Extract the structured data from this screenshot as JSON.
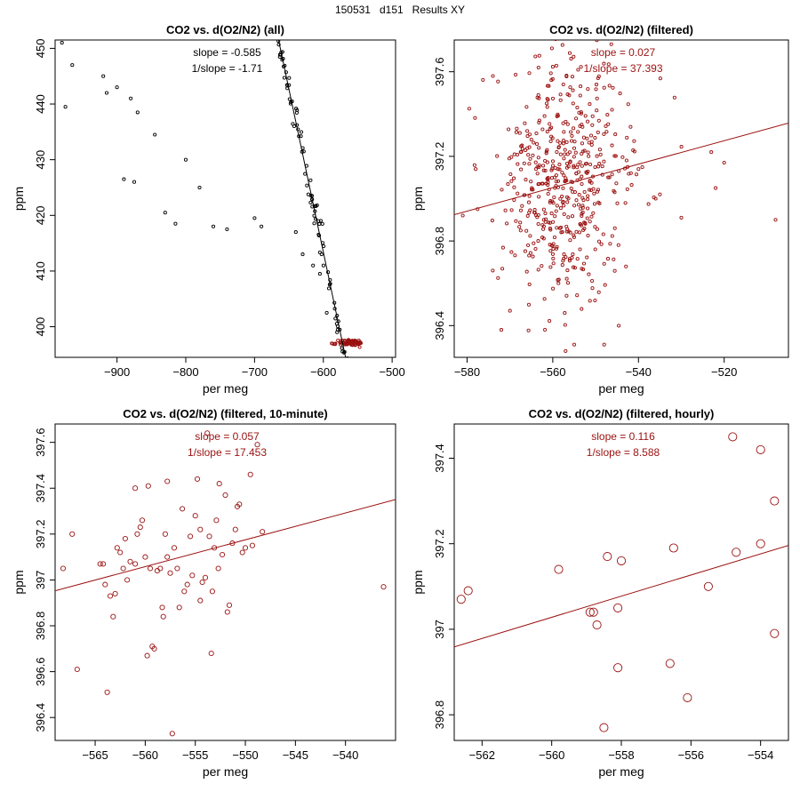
{
  "page": {
    "title": "150531   d151   Results XY"
  },
  "colors": {
    "black": "#000000",
    "red": "#9b1111",
    "frame": "#000000"
  },
  "chart_data": [
    {
      "id": "all",
      "type": "scatter",
      "title": "CO2 vs. d(O2/N2) (all)",
      "xlabel": "per meg",
      "ylabel": "ppm",
      "xlim": [
        -990,
        -495
      ],
      "ylim": [
        394.5,
        451.5
      ],
      "xticks": [
        -900,
        -800,
        -700,
        -600,
        -500
      ],
      "yticks": [
        400,
        410,
        420,
        430,
        440,
        450
      ],
      "annotations": [
        "slope = -0.585",
        "1/slope = -1.71"
      ],
      "fit": {
        "slope": -0.585,
        "intercept": 62.4
      },
      "color": "black",
      "marker_r": 1.6,
      "gen": {
        "n": 330,
        "xmin": -975,
        "xmax": -520,
        "noise": 1.4,
        "seed": 7,
        "skew": 1.6
      },
      "cluster": {
        "n": 90,
        "x": -560,
        "y": 397.1,
        "sx": 9,
        "sy": 0.25,
        "color": "red",
        "seed": 21
      },
      "points": [
        [
          -980,
          451
        ],
        [
          -975,
          439.5
        ],
        [
          -965,
          447
        ],
        [
          -920,
          445
        ],
        [
          -915,
          442
        ],
        [
          -900,
          443
        ],
        [
          -880,
          441
        ],
        [
          -870,
          438.5
        ],
        [
          -890,
          426.5
        ],
        [
          -875,
          426
        ],
        [
          -845,
          434.5
        ],
        [
          -830,
          420.5
        ],
        [
          -815,
          418.5
        ],
        [
          -800,
          430
        ],
        [
          -780,
          425
        ],
        [
          -760,
          418
        ],
        [
          -740,
          417.5
        ],
        [
          -700,
          419.5
        ],
        [
          -690,
          418
        ],
        [
          -640,
          417
        ],
        [
          -630,
          413
        ],
        [
          -615,
          411
        ],
        [
          -605,
          409.5
        ],
        [
          -595,
          402.5
        ],
        [
          -580,
          399
        ]
      ]
    },
    {
      "id": "filtered",
      "type": "scatter",
      "title": "CO2 vs. d(O2/N2) (filtered)",
      "xlabel": "per meg",
      "ylabel": "ppm",
      "xlim": [
        -583,
        -505
      ],
      "ylim": [
        396.25,
        397.75
      ],
      "xticks": [
        -580,
        -560,
        -540,
        -520
      ],
      "yticks": [
        396.4,
        396.8,
        397.2,
        397.6
      ],
      "annotations": [
        "slope = 0.027",
        "1/slope = 37.393"
      ],
      "fit": {
        "slope": 0.00555,
        "intercept": 400.16
      },
      "color": "red",
      "marker_r": 1.6,
      "gen": {
        "n": 520,
        "cx": -557,
        "sx": 7.5,
        "cy": 397.07,
        "sy": 0.28,
        "seed": 3
      },
      "points": [
        [
          -581,
          396.92
        ],
        [
          -578,
          397.14
        ],
        [
          -574,
          396.66
        ],
        [
          -572,
          396.38
        ],
        [
          -570,
          396.47
        ],
        [
          -540,
          397.14
        ],
        [
          -536,
          397.0
        ],
        [
          -535,
          397.02
        ],
        [
          -530,
          396.91
        ],
        [
          -523,
          397.22
        ],
        [
          -520,
          397.17
        ],
        [
          -522,
          397.05
        ],
        [
          -508,
          396.9
        ],
        [
          -548,
          396.31
        ],
        [
          -555,
          396.31
        ],
        [
          -557,
          396.28
        ]
      ]
    },
    {
      "id": "ten-minute",
      "type": "scatter",
      "title": "CO2 vs. d(O2/N2) (filtered, 10-minute)",
      "xlabel": "per meg",
      "ylabel": "ppm",
      "xlim": [
        -569,
        -535
      ],
      "ylim": [
        396.3,
        397.68
      ],
      "xticks": [
        -565,
        -560,
        -555,
        -550,
        -545,
        -540
      ],
      "yticks": [
        396.4,
        396.6,
        396.8,
        397.0,
        397.2,
        397.4,
        397.6
      ],
      "annotations": [
        "slope = 0.057",
        "1/slope = 17.453"
      ],
      "fit": {
        "slope": 0.0117,
        "intercept": 403.61
      },
      "color": "red",
      "marker_r": 2.6,
      "points": [
        [
          -568.2,
          397.05
        ],
        [
          -567.3,
          397.2
        ],
        [
          -566.8,
          396.61
        ],
        [
          -564.5,
          397.07
        ],
        [
          -564.2,
          397.07
        ],
        [
          -564.0,
          396.98
        ],
        [
          -563.8,
          396.51
        ],
        [
          -563.5,
          396.93
        ],
        [
          -563.2,
          396.84
        ],
        [
          -563.0,
          396.94
        ],
        [
          -562.8,
          397.14
        ],
        [
          -562.5,
          397.12
        ],
        [
          -562.2,
          397.05
        ],
        [
          -562.0,
          397.18
        ],
        [
          -561.8,
          397.0
        ],
        [
          -561.5,
          397.08
        ],
        [
          -561.0,
          397.07
        ],
        [
          -561.0,
          397.4
        ],
        [
          -560.8,
          397.2
        ],
        [
          -560.5,
          397.23
        ],
        [
          -560.3,
          397.26
        ],
        [
          -560.0,
          397.1
        ],
        [
          -559.8,
          396.67
        ],
        [
          -559.7,
          397.41
        ],
        [
          -559.5,
          397.05
        ],
        [
          -559.3,
          396.71
        ],
        [
          -559.1,
          396.7
        ],
        [
          -558.8,
          397.04
        ],
        [
          -558.5,
          397.05
        ],
        [
          -558.3,
          396.88
        ],
        [
          -558.2,
          396.84
        ],
        [
          -558.0,
          397.2
        ],
        [
          -557.8,
          397.43
        ],
        [
          -557.8,
          397.1
        ],
        [
          -557.5,
          397.03
        ],
        [
          -557.3,
          396.33
        ],
        [
          -557.1,
          397.14
        ],
        [
          -556.8,
          397.05
        ],
        [
          -556.6,
          396.88
        ],
        [
          -556.3,
          397.31
        ],
        [
          -556.1,
          396.95
        ],
        [
          -555.8,
          396.98
        ],
        [
          -555.5,
          397.19
        ],
        [
          -555.3,
          397.02
        ],
        [
          -555.0,
          397.28
        ],
        [
          -554.8,
          397.44
        ],
        [
          -554.5,
          397.22
        ],
        [
          -554.5,
          396.91
        ],
        [
          -554.3,
          396.99
        ],
        [
          -554.0,
          397.01
        ],
        [
          -553.8,
          397.64
        ],
        [
          -553.6,
          397.19
        ],
        [
          -553.4,
          396.68
        ],
        [
          -553.3,
          396.95
        ],
        [
          -553.1,
          397.14
        ],
        [
          -552.9,
          397.26
        ],
        [
          -552.7,
          397.05
        ],
        [
          -552.6,
          397.42
        ],
        [
          -552.3,
          397.11
        ],
        [
          -552.0,
          397.37
        ],
        [
          -551.8,
          396.86
        ],
        [
          -551.6,
          396.89
        ],
        [
          -551.3,
          397.16
        ],
        [
          -551.0,
          397.22
        ],
        [
          -550.8,
          397.32
        ],
        [
          -550.6,
          397.33
        ],
        [
          -550.3,
          397.12
        ],
        [
          -550.0,
          397.14
        ],
        [
          -549.5,
          397.46
        ],
        [
          -549.3,
          397.15
        ],
        [
          -548.8,
          397.59
        ],
        [
          -548.3,
          397.21
        ],
        [
          -536.2,
          396.97
        ]
      ]
    },
    {
      "id": "hourly",
      "type": "scatter",
      "title": "CO2 vs. d(O2/N2) (filtered, hourly)",
      "xlabel": "per meg",
      "ylabel": "ppm",
      "xlim": [
        -562.8,
        -553.2
      ],
      "ylim": [
        396.74,
        397.48
      ],
      "xticks": [
        -562,
        -560,
        -558,
        -556,
        -554
      ],
      "yticks": [
        396.8,
        397.0,
        397.2,
        397.4
      ],
      "annotations": [
        "slope = 0.116",
        "1/slope = 8.588"
      ],
      "fit": {
        "slope": 0.0247,
        "intercept": 410.86
      },
      "color": "red",
      "marker_r": 4.6,
      "points": [
        [
          -562.6,
          397.07
        ],
        [
          -562.4,
          397.09
        ],
        [
          -559.8,
          397.14
        ],
        [
          -558.9,
          397.04
        ],
        [
          -558.8,
          397.04
        ],
        [
          -558.7,
          397.01
        ],
        [
          -558.4,
          397.17
        ],
        [
          -558.5,
          396.77
        ],
        [
          -558.1,
          397.05
        ],
        [
          -558.1,
          396.91
        ],
        [
          -558.0,
          397.16
        ],
        [
          -556.6,
          396.92
        ],
        [
          -556.5,
          397.19
        ],
        [
          -556.1,
          396.84
        ],
        [
          -555.5,
          397.1
        ],
        [
          -554.8,
          397.45
        ],
        [
          -554.7,
          397.18
        ],
        [
          -554.0,
          397.42
        ],
        [
          -554.0,
          397.2
        ],
        [
          -553.6,
          397.3
        ],
        [
          -553.6,
          396.99
        ]
      ]
    }
  ]
}
